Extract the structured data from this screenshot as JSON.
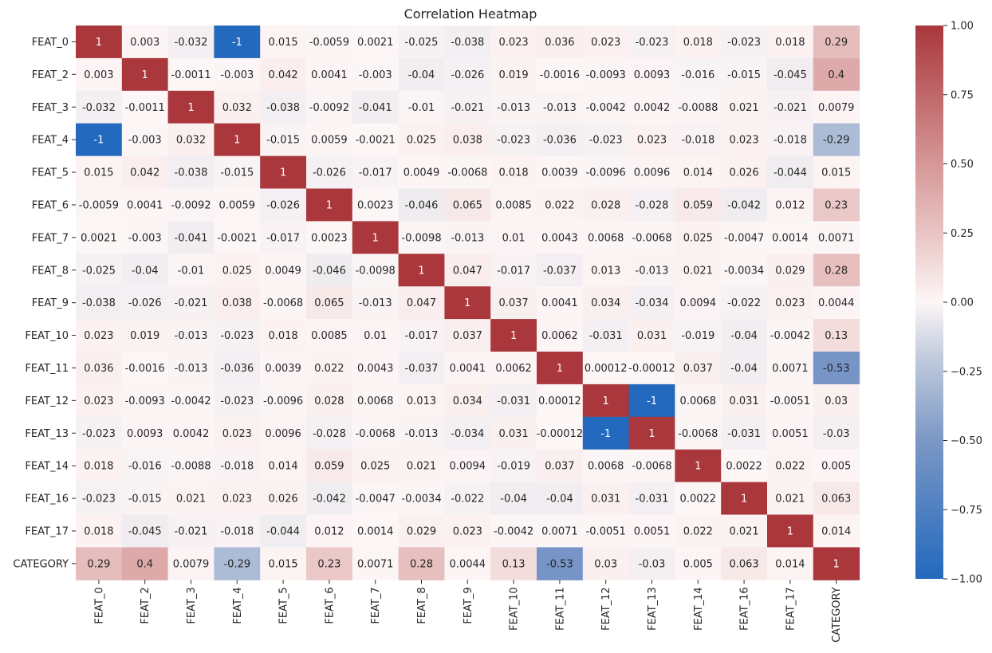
{
  "chart_data": {
    "type": "heatmap",
    "title": "Correlation Heatmap",
    "xlabel": "",
    "ylabel": "",
    "x_categories": [
      "FEAT_0",
      "FEAT_2",
      "FEAT_3",
      "FEAT_4",
      "FEAT_5",
      "FEAT_6",
      "FEAT_7",
      "FEAT_8",
      "FEAT_9",
      "FEAT_10",
      "FEAT_11",
      "FEAT_12",
      "FEAT_13",
      "FEAT_14",
      "FEAT_16",
      "FEAT_17",
      "CATEGORY"
    ],
    "y_categories": [
      "FEAT_0",
      "FEAT_2",
      "FEAT_3",
      "FEAT_4",
      "FEAT_5",
      "FEAT_6",
      "FEAT_7",
      "FEAT_8",
      "FEAT_9",
      "FEAT_10",
      "FEAT_11",
      "FEAT_12",
      "FEAT_13",
      "FEAT_14",
      "FEAT_16",
      "FEAT_17",
      "CATEGORY"
    ],
    "values": [
      [
        1,
        0.003,
        -0.032,
        -1,
        0.015,
        -0.0059,
        0.0021,
        -0.025,
        -0.038,
        0.023,
        0.036,
        0.023,
        -0.023,
        0.018,
        -0.023,
        0.018,
        0.29
      ],
      [
        0.003,
        1,
        -0.0011,
        -0.003,
        0.042,
        0.0041,
        -0.003,
        -0.04,
        -0.026,
        0.019,
        -0.0016,
        -0.0093,
        0.0093,
        -0.016,
        -0.015,
        -0.045,
        0.4
      ],
      [
        -0.032,
        -0.0011,
        1,
        0.032,
        -0.038,
        -0.0092,
        -0.041,
        -0.01,
        -0.021,
        -0.013,
        -0.013,
        -0.0042,
        0.0042,
        -0.0088,
        0.021,
        -0.021,
        0.0079
      ],
      [
        -1,
        -0.003,
        0.032,
        1,
        -0.015,
        0.0059,
        -0.0021,
        0.025,
        0.038,
        -0.023,
        -0.036,
        -0.023,
        0.023,
        -0.018,
        0.023,
        -0.018,
        -0.29
      ],
      [
        0.015,
        0.042,
        -0.038,
        -0.015,
        1,
        -0.026,
        -0.017,
        0.0049,
        -0.0068,
        0.018,
        0.0039,
        -0.0096,
        0.0096,
        0.014,
        0.026,
        -0.044,
        0.015
      ],
      [
        -0.0059,
        0.0041,
        -0.0092,
        0.0059,
        -0.026,
        1,
        0.0023,
        -0.046,
        0.065,
        0.0085,
        0.022,
        0.028,
        -0.028,
        0.059,
        -0.042,
        0.012,
        0.23
      ],
      [
        0.0021,
        -0.003,
        -0.041,
        -0.0021,
        -0.017,
        0.0023,
        1,
        -0.0098,
        -0.013,
        0.01,
        0.0043,
        0.0068,
        -0.0068,
        0.025,
        -0.0047,
        0.0014,
        0.0071
      ],
      [
        -0.025,
        -0.04,
        -0.01,
        0.025,
        0.0049,
        -0.046,
        -0.0098,
        1,
        0.047,
        -0.017,
        -0.037,
        0.013,
        -0.013,
        0.021,
        -0.0034,
        0.029,
        0.28
      ],
      [
        -0.038,
        -0.026,
        -0.021,
        0.038,
        -0.0068,
        0.065,
        -0.013,
        0.047,
        1,
        0.037,
        0.0041,
        0.034,
        -0.034,
        0.0094,
        -0.022,
        0.023,
        0.0044
      ],
      [
        0.023,
        0.019,
        -0.013,
        -0.023,
        0.018,
        0.0085,
        0.01,
        -0.017,
        0.037,
        1,
        0.0062,
        -0.031,
        0.031,
        -0.019,
        -0.04,
        -0.0042,
        0.13
      ],
      [
        0.036,
        -0.0016,
        -0.013,
        -0.036,
        0.0039,
        0.022,
        0.0043,
        -0.037,
        0.0041,
        0.0062,
        1,
        0.00012,
        -0.00012,
        0.037,
        -0.04,
        0.0071,
        -0.53
      ],
      [
        0.023,
        -0.0093,
        -0.0042,
        -0.023,
        -0.0096,
        0.028,
        0.0068,
        0.013,
        0.034,
        -0.031,
        0.00012,
        1,
        -1,
        0.0068,
        0.031,
        -0.0051,
        0.03
      ],
      [
        -0.023,
        0.0093,
        0.0042,
        0.023,
        0.0096,
        -0.028,
        -0.0068,
        -0.013,
        -0.034,
        0.031,
        -0.00012,
        -1,
        1,
        -0.0068,
        -0.031,
        0.0051,
        -0.03
      ],
      [
        0.018,
        -0.016,
        -0.0088,
        -0.018,
        0.014,
        0.059,
        0.025,
        0.021,
        0.0094,
        -0.019,
        0.037,
        0.0068,
        -0.0068,
        1,
        0.0022,
        0.022,
        0.005
      ],
      [
        -0.023,
        -0.015,
        0.021,
        0.023,
        0.026,
        -0.042,
        -0.0047,
        -0.0034,
        -0.022,
        -0.04,
        -0.04,
        0.031,
        -0.031,
        0.0022,
        1,
        0.021,
        0.063
      ],
      [
        0.018,
        -0.045,
        -0.021,
        -0.018,
        -0.044,
        0.012,
        0.0014,
        0.029,
        0.023,
        -0.0042,
        0.0071,
        -0.0051,
        0.0051,
        0.022,
        0.021,
        1,
        0.014
      ],
      [
        0.29,
        0.4,
        0.0079,
        -0.29,
        0.015,
        0.23,
        0.0071,
        0.28,
        0.0044,
        0.13,
        -0.53,
        0.03,
        -0.03,
        0.005,
        0.063,
        0.014,
        1
      ]
    ],
    "value_labels": [
      [
        "1",
        "0.003",
        "-0.032",
        "-1",
        "0.015",
        "-0.0059",
        "0.0021",
        "-0.025",
        "-0.038",
        "0.023",
        "0.036",
        "0.023",
        "-0.023",
        "0.018",
        "-0.023",
        "0.018",
        "0.29"
      ],
      [
        "0.003",
        "1",
        "-0.0011",
        "-0.003",
        "0.042",
        "0.0041",
        "-0.003",
        "-0.04",
        "-0.026",
        "0.019",
        "-0.0016",
        "-0.0093",
        "0.0093",
        "-0.016",
        "-0.015",
        "-0.045",
        "0.4"
      ],
      [
        "-0.032",
        "-0.0011",
        "1",
        "0.032",
        "-0.038",
        "-0.0092",
        "-0.041",
        "-0.01",
        "-0.021",
        "-0.013",
        "-0.013",
        "-0.0042",
        "0.0042",
        "-0.0088",
        "0.021",
        "-0.021",
        "0.0079"
      ],
      [
        "-1",
        "-0.003",
        "0.032",
        "1",
        "-0.015",
        "0.0059",
        "-0.0021",
        "0.025",
        "0.038",
        "-0.023",
        "-0.036",
        "-0.023",
        "0.023",
        "-0.018",
        "0.023",
        "-0.018",
        "-0.29"
      ],
      [
        "0.015",
        "0.042",
        "-0.038",
        "-0.015",
        "1",
        "-0.026",
        "-0.017",
        "0.0049",
        "-0.0068",
        "0.018",
        "0.0039",
        "-0.0096",
        "0.0096",
        "0.014",
        "0.026",
        "-0.044",
        "0.015"
      ],
      [
        "-0.0059",
        "0.0041",
        "-0.0092",
        "0.0059",
        "-0.026",
        "1",
        "0.0023",
        "-0.046",
        "0.065",
        "0.0085",
        "0.022",
        "0.028",
        "-0.028",
        "0.059",
        "-0.042",
        "0.012",
        "0.23"
      ],
      [
        "0.0021",
        "-0.003",
        "-0.041",
        "-0.0021",
        "-0.017",
        "0.0023",
        "1",
        "-0.0098",
        "-0.013",
        "0.01",
        "0.0043",
        "0.0068",
        "-0.0068",
        "0.025",
        "-0.0047",
        "0.0014",
        "0.0071"
      ],
      [
        "-0.025",
        "-0.04",
        "-0.01",
        "0.025",
        "0.0049",
        "-0.046",
        "-0.0098",
        "1",
        "0.047",
        "-0.017",
        "-0.037",
        "0.013",
        "-0.013",
        "0.021",
        "-0.0034",
        "0.029",
        "0.28"
      ],
      [
        "-0.038",
        "-0.026",
        "-0.021",
        "0.038",
        "-0.0068",
        "0.065",
        "-0.013",
        "0.047",
        "1",
        "0.037",
        "0.0041",
        "0.034",
        "-0.034",
        "0.0094",
        "-0.022",
        "0.023",
        "0.0044"
      ],
      [
        "0.023",
        "0.019",
        "-0.013",
        "-0.023",
        "0.018",
        "0.0085",
        "0.01",
        "-0.017",
        "0.037",
        "1",
        "0.0062",
        "-0.031",
        "0.031",
        "-0.019",
        "-0.04",
        "-0.0042",
        "0.13"
      ],
      [
        "0.036",
        "-0.0016",
        "-0.013",
        "-0.036",
        "0.0039",
        "0.022",
        "0.0043",
        "-0.037",
        "0.0041",
        "0.0062",
        "1",
        "0.00012",
        "-0.00012",
        "0.037",
        "-0.04",
        "0.0071",
        "-0.53"
      ],
      [
        "0.023",
        "-0.0093",
        "-0.0042",
        "-0.023",
        "-0.0096",
        "0.028",
        "0.0068",
        "0.013",
        "0.034",
        "-0.031",
        "0.00012",
        "1",
        "-1",
        "0.0068",
        "0.031",
        "-0.0051",
        "0.03"
      ],
      [
        "-0.023",
        "0.0093",
        "0.0042",
        "0.023",
        "0.0096",
        "-0.028",
        "-0.0068",
        "-0.013",
        "-0.034",
        "0.031",
        "-0.00012",
        "-1",
        "1",
        "-0.0068",
        "-0.031",
        "0.0051",
        "-0.03"
      ],
      [
        "0.018",
        "-0.016",
        "-0.0088",
        "-0.018",
        "0.014",
        "0.059",
        "0.025",
        "0.021",
        "0.0094",
        "-0.019",
        "0.037",
        "0.0068",
        "-0.0068",
        "1",
        "0.0022",
        "0.022",
        "0.005"
      ],
      [
        "-0.023",
        "-0.015",
        "0.021",
        "0.023",
        "0.026",
        "-0.042",
        "-0.0047",
        "-0.0034",
        "-0.022",
        "-0.04",
        "-0.04",
        "0.031",
        "-0.031",
        "0.0022",
        "1",
        "0.021",
        "0.063"
      ],
      [
        "0.018",
        "-0.045",
        "-0.021",
        "-0.018",
        "-0.044",
        "0.012",
        "0.0014",
        "0.029",
        "0.023",
        "-0.0042",
        "0.0071",
        "-0.0051",
        "0.0051",
        "0.022",
        "0.021",
        "1",
        "0.014"
      ],
      [
        "0.29",
        "0.4",
        "0.0079",
        "-0.29",
        "0.015",
        "0.23",
        "0.0071",
        "0.28",
        "0.0044",
        "0.13",
        "-0.53",
        "0.03",
        "-0.03",
        "0.005",
        "0.063",
        "0.014",
        "1"
      ]
    ],
    "colorbar": {
      "vmin": -1,
      "vmax": 1,
      "ticks": [
        -1,
        -0.75,
        -0.5,
        -0.25,
        0,
        0.25,
        0.5,
        0.75,
        1
      ],
      "tick_labels": [
        "−1.00",
        "−0.75",
        "−0.50",
        "−0.25",
        "0.00",
        "0.25",
        "0.50",
        "0.75",
        "1.00"
      ],
      "colormap": "vlag",
      "color_stops": [
        [
          -1,
          "#2369bd"
        ],
        [
          -0.5,
          "#7b97c5"
        ],
        [
          -0.2,
          "#c1cbdd"
        ],
        [
          0,
          "#fdf6f6"
        ],
        [
          0.25,
          "#e9c4c4"
        ],
        [
          0.5,
          "#d69797"
        ],
        [
          1,
          "#a9373b"
        ]
      ]
    },
    "grid": false,
    "legend": "colorbar-right"
  }
}
